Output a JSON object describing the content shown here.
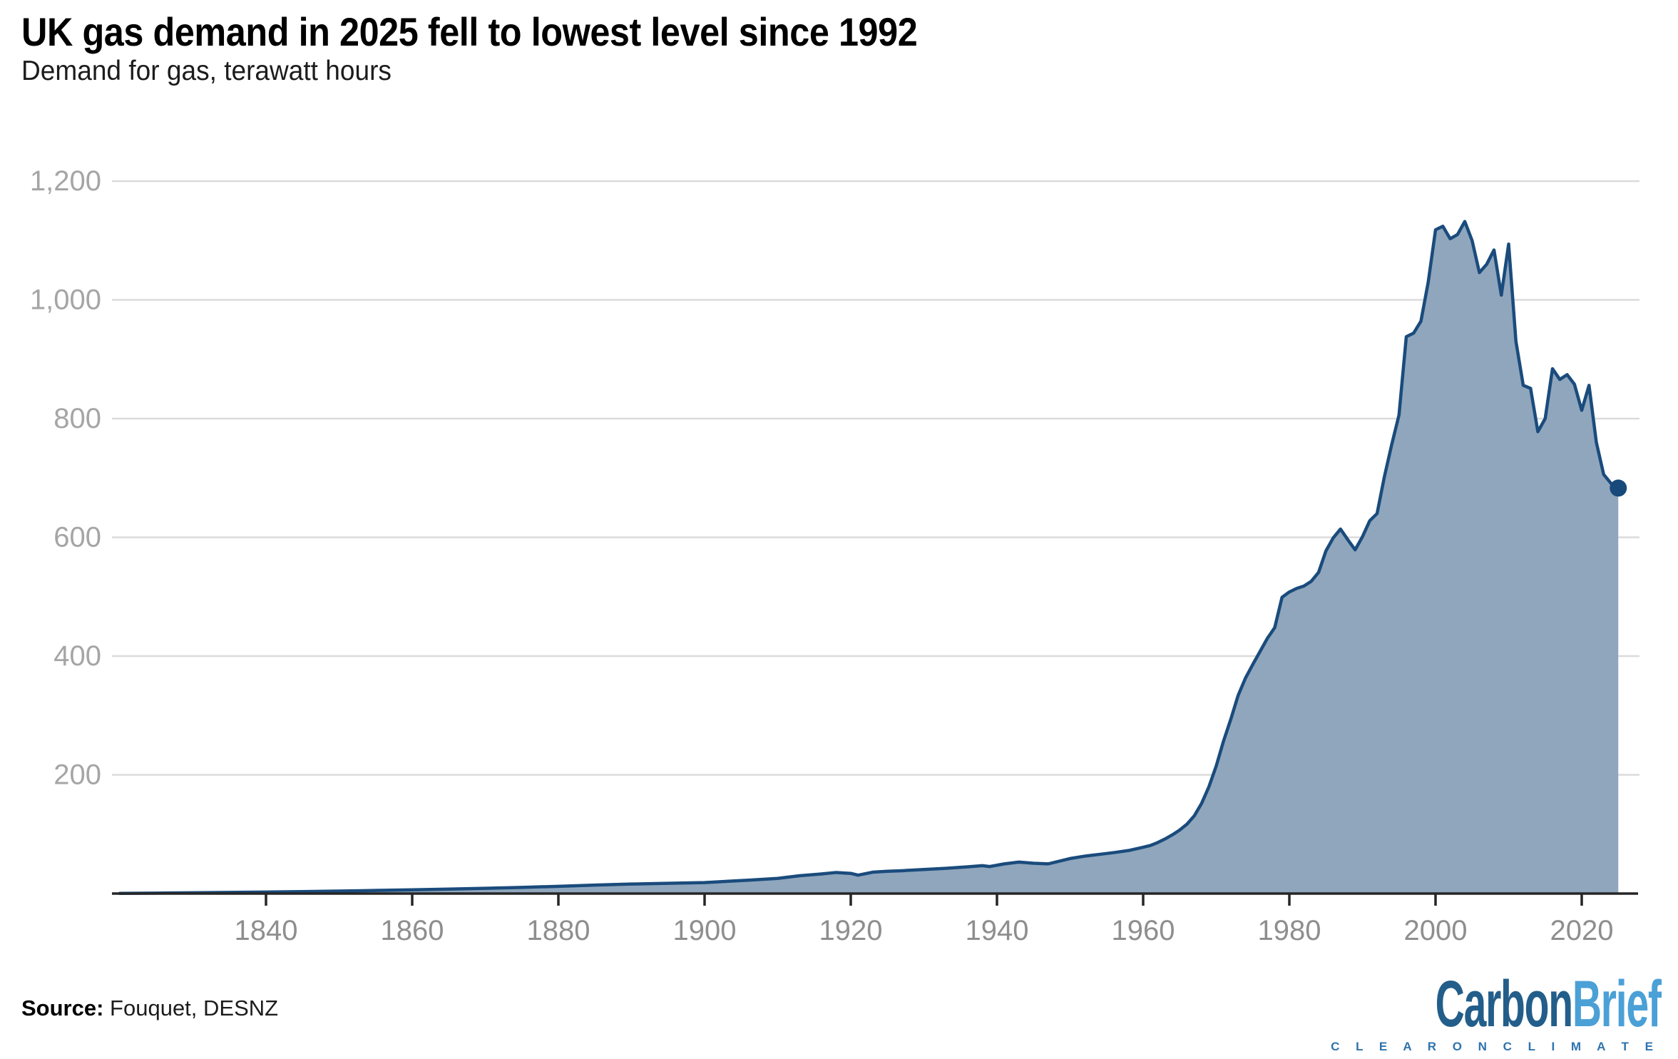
{
  "header": {
    "title": "UK gas demand in 2025 fell to lowest level since 1992",
    "subtitle": "Demand for gas, terawatt hours"
  },
  "footer": {
    "source_label": "Source:",
    "source_value": "Fouquet, DESNZ",
    "logo": {
      "part1": "Carbon",
      "part2": "Brief",
      "tagline": "C L E A R   O N   C L I M A T E"
    }
  },
  "colors": {
    "area_fill": "#8fa6bd",
    "line": "#1a4b7c",
    "end_dot": "#17497a",
    "axis": "#262626",
    "grid": "#dbdbdb",
    "y_tick_label": "#a5a5a5",
    "x_tick_label": "#8e8e8e",
    "logo_dark": "#235e8a",
    "logo_light": "#4ba0d6"
  },
  "chart_data": {
    "type": "area",
    "title": "UK gas demand in 2025 fell to lowest level since 1992",
    "subtitle": "Demand for gas, terawatt hours",
    "unit": "terawatt hours",
    "xlabel": "",
    "ylabel": "Demand for gas, terawatt hours",
    "xlim": [
      1820,
      2025
    ],
    "ylim": [
      0,
      1200
    ],
    "grid": true,
    "x_ticks": [
      1840,
      1860,
      1880,
      1900,
      1920,
      1940,
      1960,
      1980,
      2000,
      2020
    ],
    "y_ticks": [
      200,
      400,
      600,
      800,
      1000,
      1200
    ],
    "end_dot": {
      "year": 2025,
      "value": 683
    },
    "series": [
      {
        "name": "UK gas demand (TWh)",
        "points": [
          [
            1820,
            0.3
          ],
          [
            1825,
            0.8
          ],
          [
            1830,
            1.3
          ],
          [
            1835,
            1.9
          ],
          [
            1840,
            2.6
          ],
          [
            1845,
            3.3
          ],
          [
            1850,
            4.2
          ],
          [
            1855,
            5.2
          ],
          [
            1860,
            6.3
          ],
          [
            1865,
            7.5
          ],
          [
            1870,
            8.8
          ],
          [
            1875,
            10.4
          ],
          [
            1880,
            12.2
          ],
          [
            1885,
            14.2
          ],
          [
            1890,
            16
          ],
          [
            1895,
            17.2
          ],
          [
            1900,
            18.5
          ],
          [
            1903,
            20.5
          ],
          [
            1906,
            22.5
          ],
          [
            1910,
            25.5
          ],
          [
            1913,
            30
          ],
          [
            1916,
            33
          ],
          [
            1918,
            35.5
          ],
          [
            1920,
            34
          ],
          [
            1921,
            31
          ],
          [
            1923,
            36
          ],
          [
            1925,
            37.5
          ],
          [
            1927,
            38.5
          ],
          [
            1930,
            40.5
          ],
          [
            1933,
            42.5
          ],
          [
            1936,
            45
          ],
          [
            1938,
            47
          ],
          [
            1939,
            45.5
          ],
          [
            1941,
            50
          ],
          [
            1943,
            53
          ],
          [
            1945,
            51
          ],
          [
            1947,
            50
          ],
          [
            1949,
            56
          ],
          [
            1950,
            59
          ],
          [
            1952,
            63
          ],
          [
            1954,
            66
          ],
          [
            1956,
            69
          ],
          [
            1958,
            72.5
          ],
          [
            1960,
            78
          ],
          [
            1961,
            81
          ],
          [
            1962,
            86
          ],
          [
            1963,
            92
          ],
          [
            1964,
            99
          ],
          [
            1965,
            107
          ],
          [
            1966,
            117
          ],
          [
            1967,
            131
          ],
          [
            1968,
            152
          ],
          [
            1969,
            180
          ],
          [
            1970,
            215
          ],
          [
            1971,
            257
          ],
          [
            1972,
            294
          ],
          [
            1973,
            334
          ],
          [
            1974,
            363
          ],
          [
            1975,
            386
          ],
          [
            1976,
            408
          ],
          [
            1977,
            430
          ],
          [
            1978,
            448
          ],
          [
            1979,
            499
          ],
          [
            1980,
            508
          ],
          [
            1981,
            514
          ],
          [
            1982,
            518
          ],
          [
            1983,
            526
          ],
          [
            1984,
            541
          ],
          [
            1985,
            577
          ],
          [
            1986,
            599
          ],
          [
            1987,
            614
          ],
          [
            1988,
            596
          ],
          [
            1989,
            579
          ],
          [
            1990,
            601
          ],
          [
            1991,
            628
          ],
          [
            1992,
            640
          ],
          [
            1993,
            702
          ],
          [
            1994,
            756
          ],
          [
            1995,
            806
          ],
          [
            1996,
            938
          ],
          [
            1997,
            944
          ],
          [
            1998,
            964
          ],
          [
            1999,
            1030
          ],
          [
            2000,
            1118
          ],
          [
            2001,
            1124
          ],
          [
            2002,
            1103
          ],
          [
            2003,
            1110
          ],
          [
            2004,
            1132
          ],
          [
            2005,
            1100
          ],
          [
            2006,
            1046
          ],
          [
            2007,
            1060
          ],
          [
            2008,
            1084
          ],
          [
            2009,
            1008
          ],
          [
            2010,
            1094
          ],
          [
            2011,
            930
          ],
          [
            2012,
            856
          ],
          [
            2013,
            851
          ],
          [
            2014,
            778
          ],
          [
            2015,
            800
          ],
          [
            2016,
            884
          ],
          [
            2017,
            866
          ],
          [
            2018,
            874
          ],
          [
            2019,
            858
          ],
          [
            2020,
            814
          ],
          [
            2021,
            856
          ],
          [
            2022,
            760
          ],
          [
            2023,
            706
          ],
          [
            2024,
            691
          ],
          [
            2025,
            683
          ]
        ]
      }
    ]
  }
}
